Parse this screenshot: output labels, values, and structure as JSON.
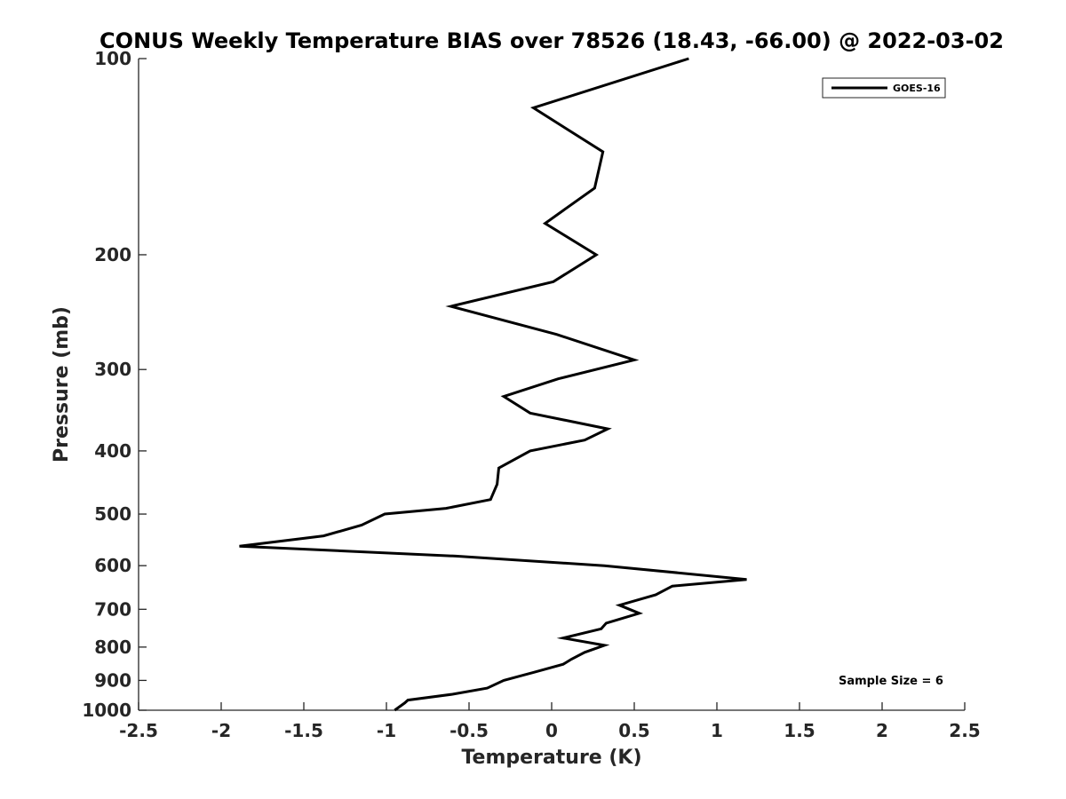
{
  "chart_data": {
    "type": "line",
    "title": "CONUS Weekly Temperature BIAS over 78526 (18.43, -66.00) @ 2022-03-02",
    "xlabel": "Temperature (K)",
    "ylabel": "Pressure (mb)",
    "xlim": [
      -2.5,
      2.5
    ],
    "ylim": [
      100,
      1000
    ],
    "y_scale": "log",
    "y_reversed": true,
    "grid": false,
    "x_ticks": [
      "-2.5",
      "-2",
      "-1.5",
      "-1",
      "-0.5",
      "0",
      "0.5",
      "1",
      "1.5",
      "2",
      "2.5"
    ],
    "x_tick_values": [
      -2.5,
      -2,
      -1.5,
      -1,
      -0.5,
      0,
      0.5,
      1,
      1.5,
      2,
      2.5
    ],
    "y_ticks": [
      "100",
      "200",
      "300",
      "400",
      "500",
      "600",
      "700",
      "800",
      "900",
      "1000"
    ],
    "y_tick_values": [
      100,
      200,
      300,
      400,
      500,
      600,
      700,
      800,
      900,
      1000
    ],
    "legend_position": "top-right",
    "series": [
      {
        "name": "GOES-16",
        "color": "#000000",
        "points": [
          {
            "x": 0.83,
            "p": 100
          },
          {
            "x": -0.11,
            "p": 119
          },
          {
            "x": 0.31,
            "p": 139
          },
          {
            "x": 0.26,
            "p": 158
          },
          {
            "x": -0.04,
            "p": 179
          },
          {
            "x": 0.27,
            "p": 200
          },
          {
            "x": 0.01,
            "p": 220
          },
          {
            "x": -0.61,
            "p": 240
          },
          {
            "x": 0.03,
            "p": 265
          },
          {
            "x": 0.5,
            "p": 290
          },
          {
            "x": 0.04,
            "p": 310
          },
          {
            "x": -0.29,
            "p": 330
          },
          {
            "x": -0.13,
            "p": 350
          },
          {
            "x": 0.34,
            "p": 370
          },
          {
            "x": 0.2,
            "p": 385
          },
          {
            "x": -0.13,
            "p": 400
          },
          {
            "x": -0.32,
            "p": 425
          },
          {
            "x": -0.33,
            "p": 450
          },
          {
            "x": -0.37,
            "p": 475
          },
          {
            "x": -0.64,
            "p": 490
          },
          {
            "x": -1.01,
            "p": 500
          },
          {
            "x": -1.15,
            "p": 520
          },
          {
            "x": -1.38,
            "p": 540
          },
          {
            "x": -1.89,
            "p": 560
          },
          {
            "x": -0.58,
            "p": 580
          },
          {
            "x": 0.32,
            "p": 600
          },
          {
            "x": 1.18,
            "p": 630
          },
          {
            "x": 0.73,
            "p": 645
          },
          {
            "x": 0.63,
            "p": 665
          },
          {
            "x": 0.41,
            "p": 690
          },
          {
            "x": 0.53,
            "p": 710
          },
          {
            "x": 0.33,
            "p": 735
          },
          {
            "x": 0.3,
            "p": 750
          },
          {
            "x": 0.07,
            "p": 775
          },
          {
            "x": 0.32,
            "p": 795
          },
          {
            "x": 0.2,
            "p": 815
          },
          {
            "x": 0.12,
            "p": 835
          },
          {
            "x": 0.07,
            "p": 850
          },
          {
            "x": -0.11,
            "p": 875
          },
          {
            "x": -0.29,
            "p": 900
          },
          {
            "x": -0.39,
            "p": 925
          },
          {
            "x": -0.6,
            "p": 945
          },
          {
            "x": -0.87,
            "p": 965
          },
          {
            "x": -0.89,
            "p": 975
          },
          {
            "x": -0.95,
            "p": 1000
          }
        ]
      }
    ],
    "annotations": [
      "Sample Size = 6"
    ]
  }
}
